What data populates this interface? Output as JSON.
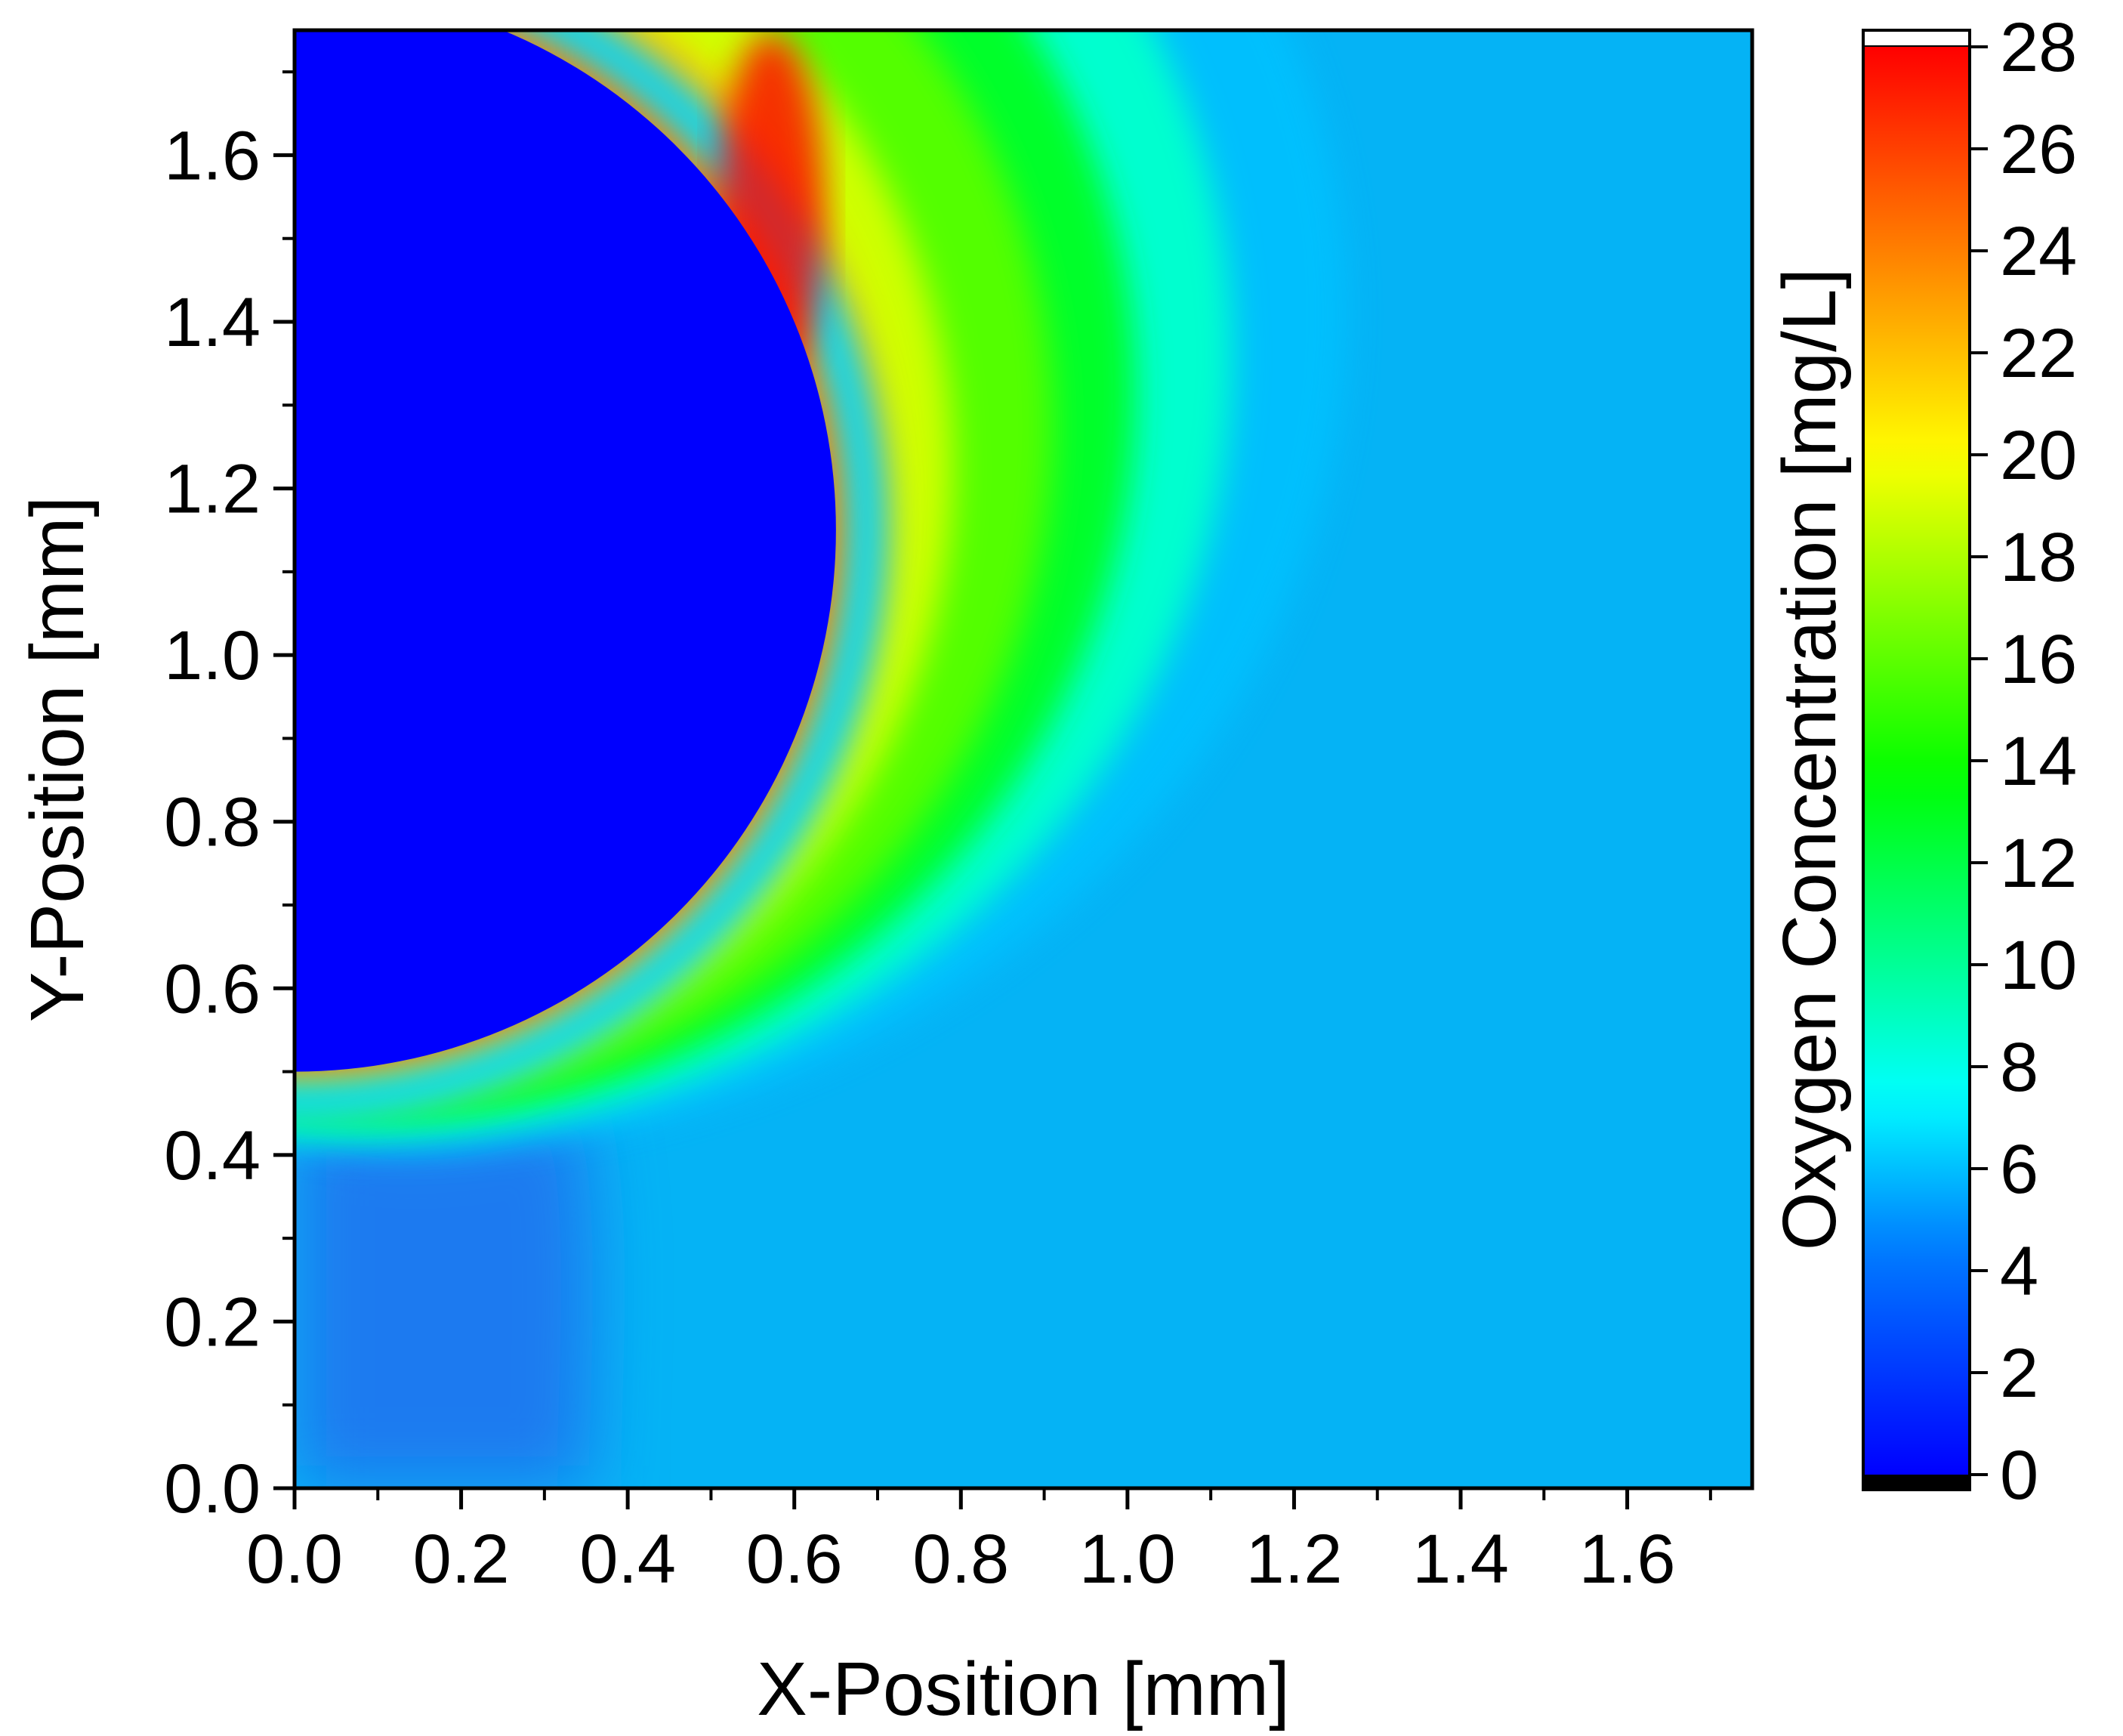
{
  "chart_data": {
    "type": "heatmap",
    "xlabel": "X-Position [mm]",
    "ylabel": "Y-Position [mm]",
    "xlim": [
      0.0,
      1.75
    ],
    "ylim": [
      0.0,
      1.75
    ],
    "xticks": [
      "0.0",
      "0.2",
      "0.4",
      "0.6",
      "0.8",
      "1.0",
      "1.2",
      "1.4",
      "1.6"
    ],
    "yticks": [
      "0.0",
      "0.2",
      "0.4",
      "0.6",
      "0.8",
      "1.0",
      "1.2",
      "1.4",
      "1.6"
    ],
    "colorbar": {
      "label": "Oxygen Concentration [mg/L]",
      "range": [
        0,
        28
      ],
      "ticks": [
        "0",
        "2",
        "4",
        "6",
        "8",
        "10",
        "12",
        "14",
        "16",
        "18",
        "20",
        "22",
        "24",
        "26",
        "28"
      ],
      "colormap": [
        "#000000",
        "#0000ff",
        "#0080ff",
        "#00ffff",
        "#00ff00",
        "#ffff00",
        "#ff8000",
        "#ff0000"
      ]
    },
    "features": {
      "bubble": {
        "center_x_mm": 0.0,
        "center_y_mm": 1.15,
        "radius_mm": 0.65,
        "concentration_mg_per_L": 0
      },
      "peak_region": {
        "x_mm": 0.5,
        "y_mm": 1.72,
        "concentration_mg_per_L": 28
      },
      "background_concentration_mg_per_L": 5.5
    }
  }
}
